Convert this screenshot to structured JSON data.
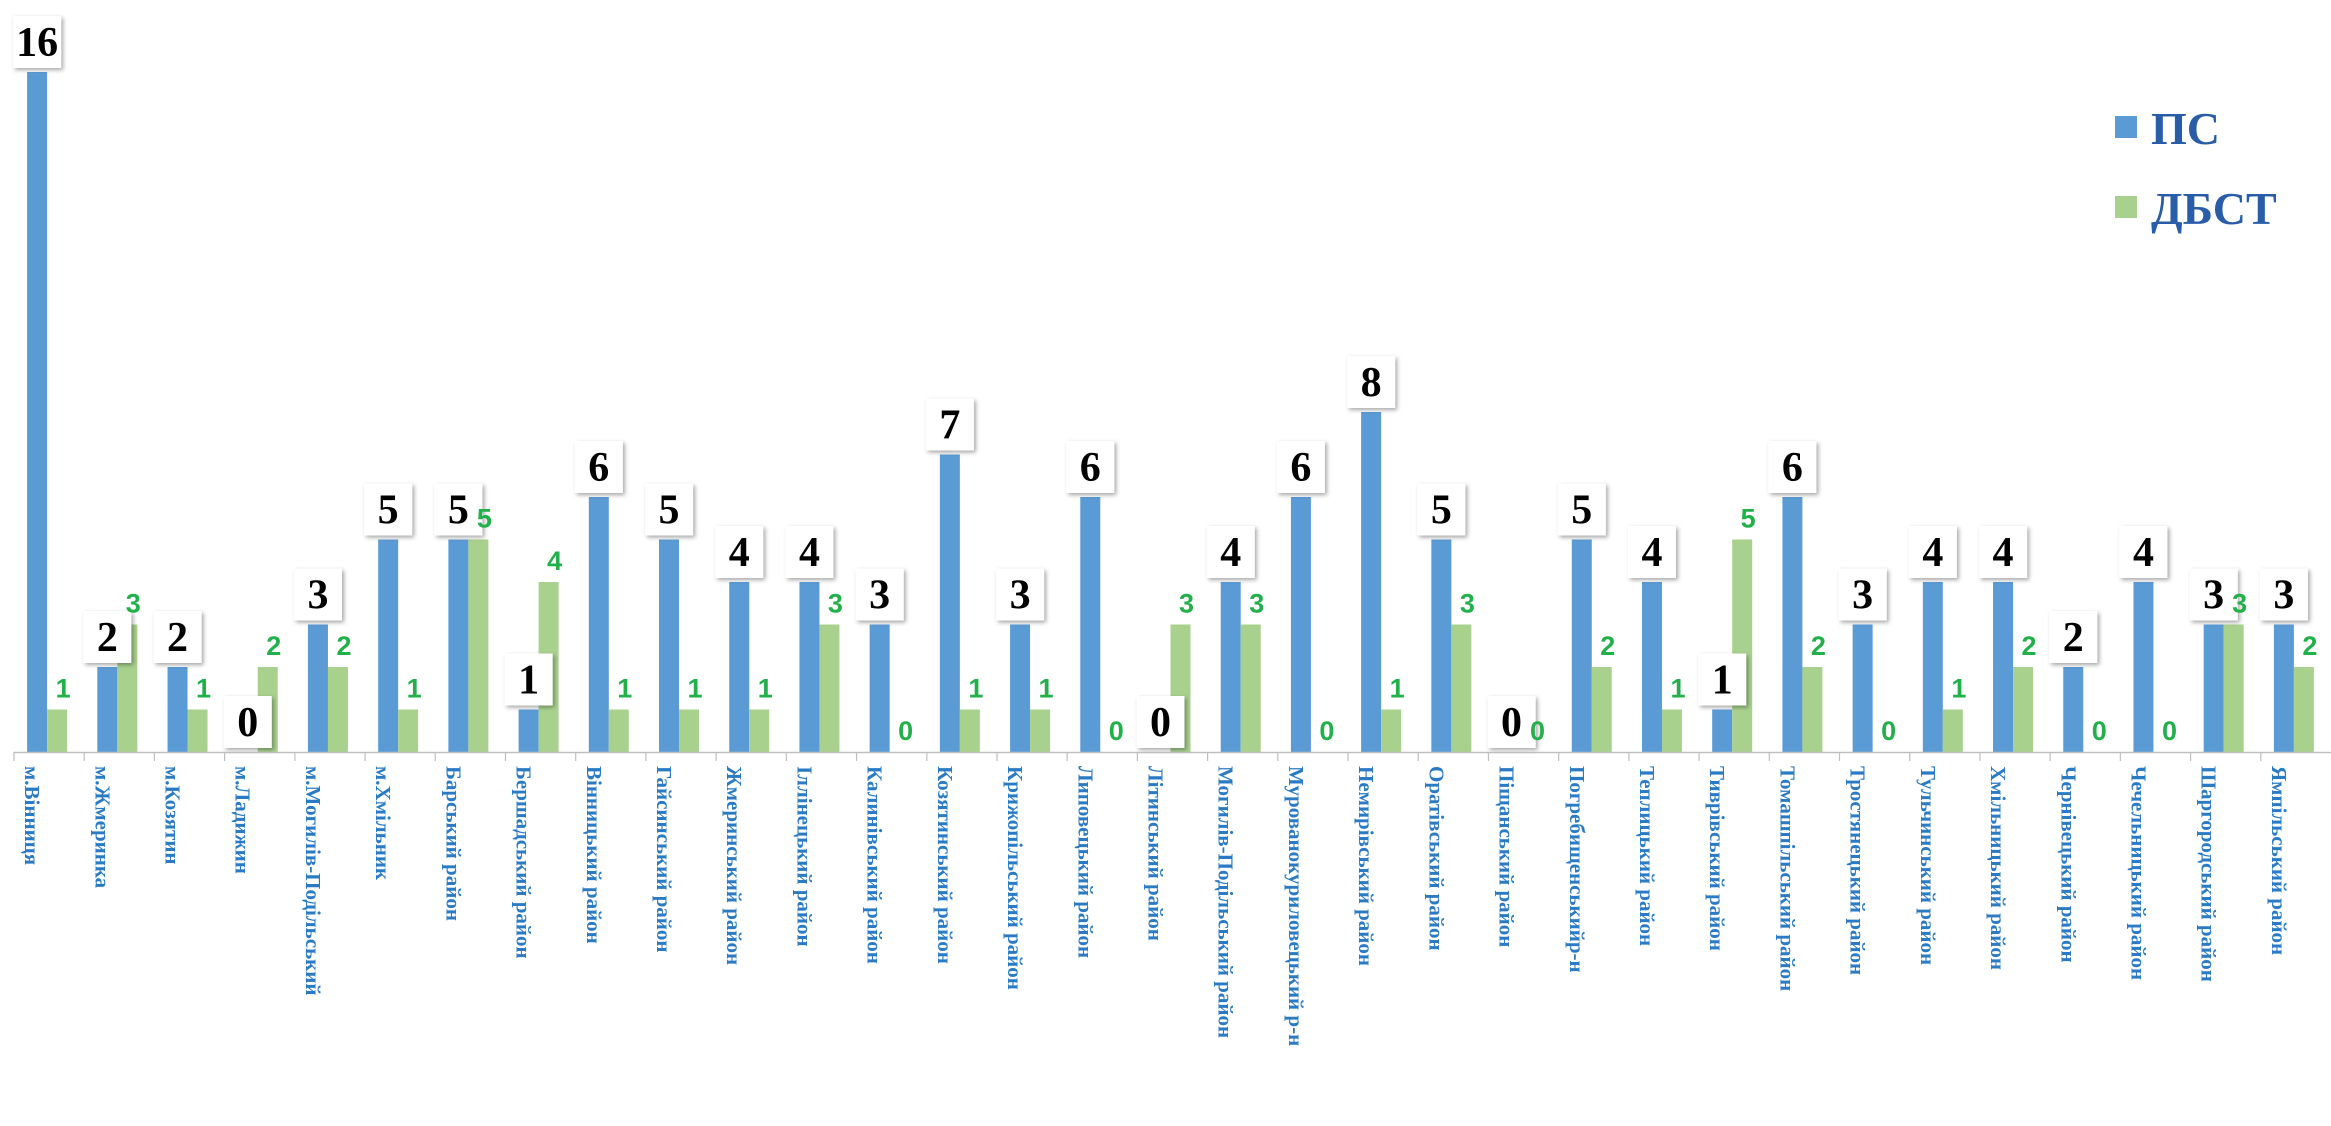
{
  "chart_data": {
    "type": "bar",
    "categories": [
      "м.Вінниця",
      "м.Жмеринка",
      "м.Козятин",
      "м.Ладижин",
      "м.Могилів-Подільський",
      "м.Хмільник",
      "Барський район",
      "Бершадський район",
      "Вінницький район",
      "Гайсинський район",
      "Жмеринський район",
      "Іллінецький район",
      "Калинівський район",
      "Козятинський район",
      "Крижопільський район",
      "Липовецький район",
      "Літинський район",
      "Могилів-Подільський район",
      "Мурованокуриловецький р-н",
      "Немирівський район",
      "Оратівський район",
      "Піщанський район",
      "Погребищенськийр-н",
      "Теплицький район",
      "Тиврівський район",
      "Томашпільський район",
      "Тростянецький район",
      "Тульчинський район",
      "Хмільницький район",
      "Чернівецький район",
      "Чечельницький район",
      "Шаргородський район",
      "Ямпільський район"
    ],
    "series": [
      {
        "name": "ПС",
        "color": "#5b9bd5",
        "values": [
          16,
          2,
          2,
          0,
          3,
          5,
          5,
          1,
          6,
          5,
          4,
          4,
          3,
          7,
          3,
          6,
          0,
          4,
          6,
          8,
          5,
          0,
          5,
          4,
          1,
          6,
          3,
          4,
          4,
          2,
          4,
          3,
          3
        ]
      },
      {
        "name": "ДБСТ",
        "color": "#a9d18e",
        "values": [
          1,
          3,
          1,
          2,
          2,
          1,
          5,
          4,
          1,
          1,
          1,
          3,
          0,
          1,
          1,
          0,
          3,
          3,
          0,
          1,
          3,
          0,
          2,
          1,
          5,
          2,
          0,
          1,
          2,
          0,
          0,
          3,
          2
        ]
      }
    ],
    "ylim": [
      0,
      16
    ],
    "grid": false,
    "legend": "top-right"
  }
}
